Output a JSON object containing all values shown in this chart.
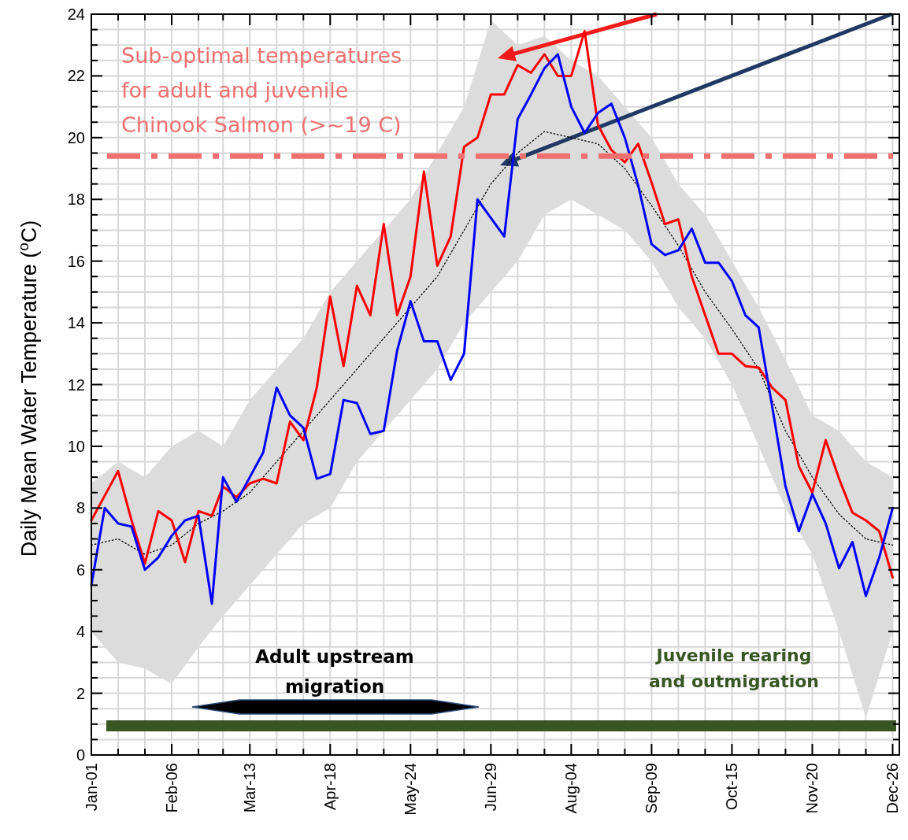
{
  "chart_data": {
    "type": "line",
    "ylabel": "Daily Mean Water Temperature ($^{o}$C)",
    "x": [
      "--01-01",
      "--01-07",
      "--01-13",
      "--01-19",
      "--01-25",
      "--01-31",
      "--02-06",
      "--02-12",
      "--02-18",
      "--02-24",
      "--03-01",
      "--03-07",
      "--03-13",
      "--03-19",
      "--03-25",
      "--03-31",
      "--04-06",
      "--04-12",
      "--04-18",
      "--04-24",
      "--04-30",
      "--05-06",
      "--05-12",
      "--05-18",
      "--05-24",
      "--05-30",
      "--06-05",
      "--06-11",
      "--06-17",
      "--06-23",
      "--06-29",
      "--07-05",
      "--07-11",
      "--07-17",
      "--07-23",
      "--07-29",
      "--08-04",
      "--08-10",
      "--08-16",
      "--08-22",
      "--08-28",
      "--09-03",
      "--09-09",
      "--09-15",
      "--09-21",
      "--09-27",
      "--10-03",
      "--10-09",
      "--10-15",
      "--10-21",
      "--10-27",
      "--11-02",
      "--11-08",
      "--11-14",
      "--11-20",
      "--11-26",
      "--12-02",
      "--12-08",
      "--12-14",
      "--12-20",
      "--12-26"
    ],
    "series": [
      {
        "type": "line",
        "color": "#000000",
        "line_style": "dotted",
        "x": [
          "--01-01",
          "--01-13",
          "--01-25",
          "--02-06",
          "--02-18",
          "--03-01",
          "--03-13",
          "--03-25",
          "--04-06",
          "--04-18",
          "--04-30",
          "--05-12",
          "--05-24",
          "--06-05",
          "--06-17",
          "--06-29",
          "--07-11",
          "--07-23",
          "--08-04",
          "--08-16",
          "--08-28",
          "--09-09",
          "--09-21",
          "--10-03",
          "--10-15",
          "--10-27",
          "--11-08",
          "--11-20",
          "--12-02",
          "--12-14",
          "--12-26"
        ],
        "values": [
          6.8,
          7.0,
          6.5,
          6.8,
          7.5,
          7.9,
          8.5,
          9.5,
          10.5,
          11.5,
          12.5,
          13.5,
          14.5,
          15.5,
          17.0,
          18.5,
          19.5,
          20.2,
          20.0,
          19.8,
          19.0,
          17.8,
          16.5,
          15.0,
          13.8,
          12.5,
          10.5,
          9.0,
          7.8,
          7.0,
          6.8
        ],
        "lower": [
          4.0,
          3.0,
          2.8,
          2.3,
          3.5,
          4.5,
          5.5,
          6.5,
          7.5,
          8.0,
          9.5,
          10.5,
          11.5,
          12.5,
          14.0,
          15.0,
          16.0,
          17.5,
          18.0,
          17.5,
          17.0,
          16.0,
          14.5,
          13.5,
          12.0,
          10.0,
          8.0,
          6.5,
          4.0,
          1.2,
          4.0
        ],
        "upper": [
          8.8,
          9.5,
          9.0,
          10.0,
          10.5,
          10.0,
          11.5,
          12.5,
          13.5,
          15.0,
          16.0,
          17.0,
          18.0,
          19.5,
          21.0,
          23.8,
          23.0,
          23.3,
          22.5,
          22.0,
          21.0,
          20.0,
          18.5,
          17.5,
          16.0,
          14.5,
          12.8,
          11.0,
          10.5,
          9.5,
          9.0
        ]
      },
      {
        "color": "#ff0000",
        "values": [
          7.6,
          8.4,
          9.2,
          7.6,
          6.2,
          7.9,
          7.6,
          6.25,
          7.9,
          7.75,
          8.7,
          8.35,
          8.8,
          8.95,
          8.8,
          10.8,
          10.2,
          11.9,
          14.85,
          12.6,
          15.2,
          14.25,
          17.2,
          14.25,
          15.5,
          18.9,
          15.85,
          16.8,
          19.7,
          20.0,
          21.4,
          21.4,
          22.35,
          22.1,
          22.7,
          22.0,
          22.0,
          23.45,
          20.4,
          19.6,
          19.2,
          19.8,
          18.55,
          17.2,
          17.35,
          15.5,
          14.25,
          13.0,
          13.0,
          12.6,
          12.55,
          11.9,
          11.5,
          9.35,
          8.5,
          10.2,
          8.95,
          7.85,
          7.6,
          7.25,
          5.75
        ]
      },
      {
        "color": "#0000ff",
        "values": [
          5.5,
          8.0,
          7.5,
          7.4,
          6.0,
          6.4,
          7.1,
          7.6,
          7.75,
          4.9,
          9.0,
          8.2,
          9.0,
          9.8,
          11.9,
          11.0,
          10.6,
          8.95,
          9.1,
          11.5,
          11.4,
          10.4,
          10.5,
          13.1,
          14.7,
          13.4,
          13.4,
          12.15,
          13.0,
          18.0,
          17.4,
          16.8,
          20.6,
          21.4,
          22.25,
          22.7,
          21.0,
          20.15,
          20.8,
          21.1,
          20.0,
          18.45,
          16.55,
          16.2,
          16.35,
          17.05,
          15.95,
          15.95,
          15.35,
          14.25,
          13.85,
          11.3,
          8.7,
          7.25,
          8.45,
          7.5,
          6.05,
          6.9,
          5.15,
          6.4,
          8.0
        ]
      }
    ],
    "xlim": [
      "--01-01",
      "--12-29"
    ],
    "xticks": [
      {
        "value": "--01-01",
        "label": "Jan-01"
      },
      {
        "value": "--01-13",
        "label": null
      },
      {
        "value": "--01-25",
        "label": null
      },
      {
        "value": "--02-06",
        "label": "Feb-06"
      },
      {
        "value": "--02-18",
        "label": null
      },
      {
        "value": "--03-01",
        "label": null
      },
      {
        "value": "--03-13",
        "label": "Mar-13"
      },
      {
        "value": "--03-25",
        "label": null
      },
      {
        "value": "--04-06",
        "label": null
      },
      {
        "value": "--04-18",
        "label": "Apr-18"
      },
      {
        "value": "--04-30",
        "label": null
      },
      {
        "value": "--05-12",
        "label": null
      },
      {
        "value": "--05-24",
        "label": "May-24"
      },
      {
        "value": "--06-05",
        "label": null
      },
      {
        "value": "--06-17",
        "label": null
      },
      {
        "value": "--06-29",
        "label": "Jun-29"
      },
      {
        "value": "--07-11",
        "label": null
      },
      {
        "value": "--07-23",
        "label": null
      },
      {
        "value": "--08-04",
        "label": "Aug-04"
      },
      {
        "value": "--08-16",
        "label": null
      },
      {
        "value": "--08-28",
        "label": null
      },
      {
        "value": "--09-09",
        "label": "Sep-09"
      },
      {
        "value": "--09-21",
        "label": null
      },
      {
        "value": "--10-03",
        "label": null
      },
      {
        "value": "--10-15",
        "label": "Oct-15"
      },
      {
        "value": "--10-27",
        "label": null
      },
      {
        "value": "--11-08",
        "label": null
      },
      {
        "value": "--11-20",
        "label": "Nov-20"
      },
      {
        "value": "--12-02",
        "label": null
      },
      {
        "value": "--12-14",
        "label": null
      },
      {
        "value": "--12-26",
        "label": "Dec-26"
      }
    ],
    "ylim": [
      0,
      24
    ],
    "yticks": [
      0,
      {
        "value": 0.5,
        "label": null
      },
      {
        "value": 1,
        "label": null
      },
      {
        "value": 1.5,
        "label": null
      },
      2,
      {
        "value": 2.5,
        "label": null
      },
      {
        "value": 3,
        "label": null
      },
      {
        "value": 3.5,
        "label": null
      },
      4,
      {
        "value": 4.5,
        "label": null
      },
      {
        "value": 5,
        "label": null
      },
      {
        "value": 5.5,
        "label": null
      },
      6,
      {
        "value": 6.5,
        "label": null
      },
      {
        "value": 7,
        "label": null
      },
      {
        "value": 7.5,
        "label": null
      },
      8,
      {
        "value": 8.5,
        "label": null
      },
      {
        "value": 9,
        "label": null
      },
      {
        "value": 9.5,
        "label": null
      },
      10,
      {
        "value": 10.5,
        "label": null
      },
      {
        "value": 11,
        "label": null
      },
      {
        "value": 11.5,
        "label": null
      },
      12,
      {
        "value": 12.5,
        "label": null
      },
      {
        "value": 13,
        "label": null
      },
      {
        "value": 13.5,
        "label": null
      },
      14,
      {
        "value": 14.5,
        "label": null
      },
      {
        "value": 15,
        "label": null
      },
      {
        "value": 15.5,
        "label": null
      },
      16,
      {
        "value": 16.5,
        "label": null
      },
      {
        "value": 17,
        "label": null
      },
      {
        "value": 17.5,
        "label": null
      },
      18,
      {
        "value": 18.5,
        "label": null
      },
      {
        "value": 19,
        "label": null
      },
      {
        "value": 19.5,
        "label": null
      },
      20,
      {
        "value": 20.5,
        "label": null
      },
      {
        "value": 21,
        "label": null
      },
      {
        "value": 21.5,
        "label": null
      },
      22,
      {
        "value": 22.5,
        "label": null
      },
      {
        "value": 23,
        "label": null
      },
      {
        "value": 23.5,
        "label": null
      },
      24
    ],
    "grid": true,
    "ref_lines": [
      {
        "axis": "y",
        "value": 19.4,
        "label": "Sub-optimal temperatures for adult and juvenile Chinook Salmon (>~19 C)",
        "color": "#f07070",
        "line_style": "dashed"
      }
    ],
    "annotations": [
      "Adult upstream migration",
      "Juvenile rearing and outmigration"
    ]
  }
}
